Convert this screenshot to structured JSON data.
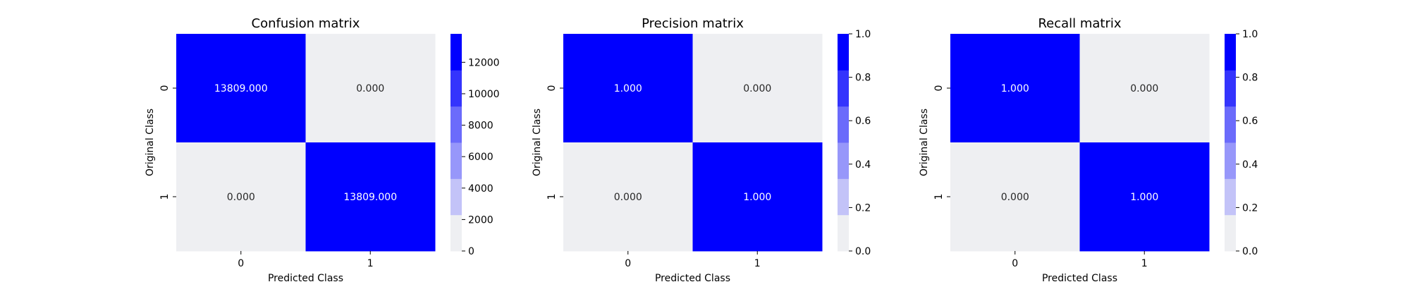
{
  "chart_data": [
    {
      "type": "heatmap",
      "title": "Confusion matrix",
      "xlabel": "Predicted Class",
      "ylabel": "Original Class",
      "x_categories": [
        "0",
        "1"
      ],
      "y_categories": [
        "0",
        "1"
      ],
      "values": [
        [
          13809,
          0
        ],
        [
          0,
          13809
        ]
      ],
      "cell_labels": [
        [
          "13809.000",
          "0.000"
        ],
        [
          "0.000",
          "13809.000"
        ]
      ],
      "colorbar": {
        "range": [
          0,
          13809
        ],
        "ticks": [
          0,
          2000,
          4000,
          6000,
          8000,
          10000,
          12000
        ],
        "tick_labels": [
          "0",
          "2000",
          "4000",
          "6000",
          "8000",
          "10000",
          "12000"
        ]
      }
    },
    {
      "type": "heatmap",
      "title": "Precision matrix",
      "xlabel": "Predicted Class",
      "ylabel": "Original Class",
      "x_categories": [
        "0",
        "1"
      ],
      "y_categories": [
        "0",
        "1"
      ],
      "values": [
        [
          1,
          0
        ],
        [
          0,
          1
        ]
      ],
      "cell_labels": [
        [
          "1.000",
          "0.000"
        ],
        [
          "0.000",
          "1.000"
        ]
      ],
      "colorbar": {
        "range": [
          0,
          1
        ],
        "ticks": [
          0,
          0.2,
          0.4,
          0.6,
          0.8,
          1.0
        ],
        "tick_labels": [
          "0.0",
          "0.2",
          "0.4",
          "0.6",
          "0.8",
          "1.0"
        ]
      }
    },
    {
      "type": "heatmap",
      "title": "Recall matrix",
      "xlabel": "Predicted Class",
      "ylabel": "Original Class",
      "x_categories": [
        "0",
        "1"
      ],
      "y_categories": [
        "0",
        "1"
      ],
      "values": [
        [
          1,
          0
        ],
        [
          0,
          1
        ]
      ],
      "cell_labels": [
        [
          "1.000",
          "0.000"
        ],
        [
          "0.000",
          "1.000"
        ]
      ],
      "colorbar": {
        "range": [
          0,
          1
        ],
        "ticks": [
          0,
          0.2,
          0.4,
          0.6,
          0.8,
          1.0
        ],
        "tick_labels": [
          "0.0",
          "0.2",
          "0.4",
          "0.6",
          "0.8",
          "1.0"
        ]
      }
    }
  ],
  "colormap": {
    "light": "#eeeff2",
    "dark": "#0000ff",
    "steps": [
      "#eeeff2",
      "#c3c3f8",
      "#9797fa",
      "#6b6bfb",
      "#3434fd",
      "#0000ff"
    ]
  }
}
